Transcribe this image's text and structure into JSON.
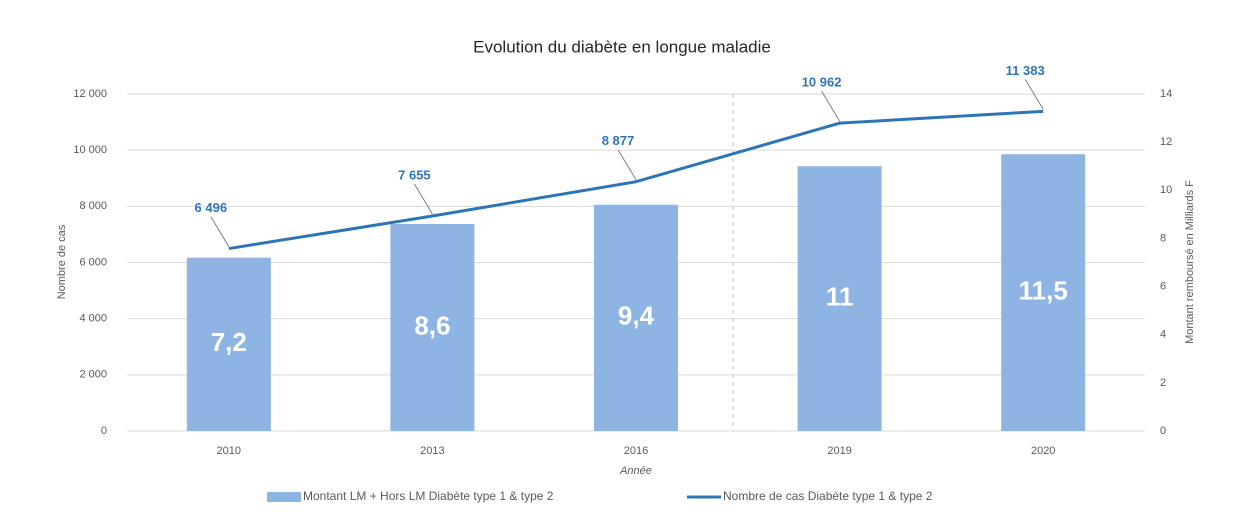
{
  "chart_data": {
    "type": "bar",
    "title": "Evolution du diabète en longue maladie",
    "x_label": "Année",
    "y_label": "Nombre de cas",
    "y2_label": "Montant remboursé en Milliards F",
    "categories": [
      "2010",
      "2013",
      "2016",
      "2019",
      "2020"
    ],
    "series": [
      {
        "name": "Montant LM + Hors LM Diabète type 1 & type 2",
        "type": "bar",
        "axis": "y2",
        "color": "#8eb4e3",
        "values": [
          7.2,
          8.6,
          9.4,
          11,
          11.5
        ],
        "value_labels": [
          "7,2",
          "8,6",
          "9,4",
          "11",
          "11,5"
        ]
      },
      {
        "name": "Nombre de cas Diabète type 1 & type 2",
        "type": "line",
        "color": "#2e75b6",
        "values": [
          6496,
          7655,
          8877,
          10962,
          11383
        ],
        "value_labels": [
          "6 496",
          "7 655",
          "8 877",
          "10 962",
          "11 383"
        ]
      }
    ],
    "ylim": [
      0,
      12000
    ],
    "yticks": [
      0,
      {
        "value": 2000,
        "label": "2 000"
      },
      {
        "value": 4000,
        "label": "4 000"
      },
      {
        "value": 6000,
        "label": "6 000"
      },
      {
        "value": 8000,
        "label": "8 000"
      },
      {
        "value": 10000,
        "label": "10 000"
      },
      {
        "value": 12000,
        "label": "12 000"
      }
    ],
    "y2lim": [
      0,
      14
    ],
    "y2ticks": [
      0,
      2,
      4,
      6,
      8,
      10,
      12,
      14
    ],
    "grid": true,
    "legend": "bottom"
  }
}
